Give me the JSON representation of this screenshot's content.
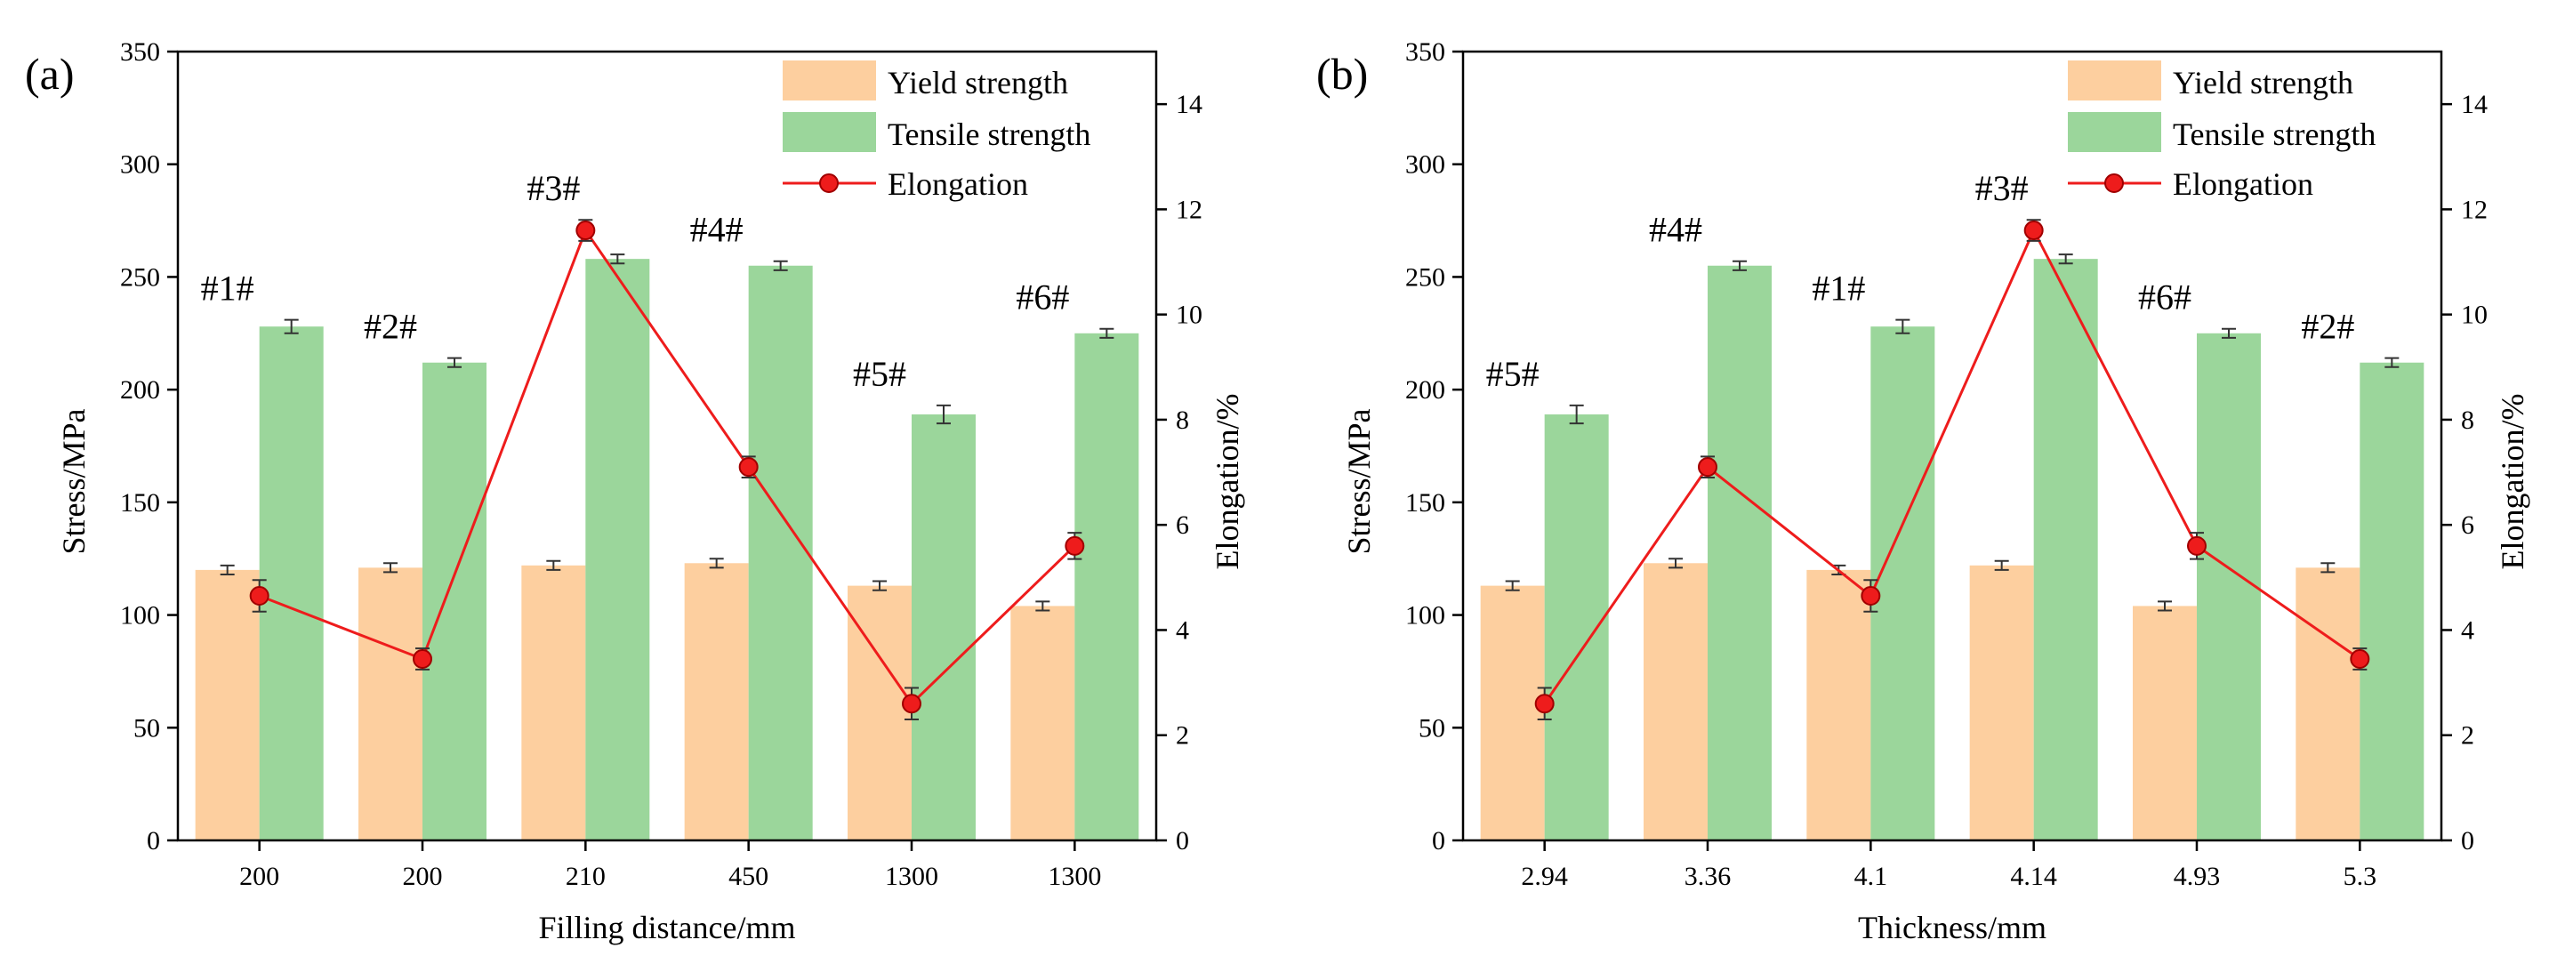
{
  "chart_data": [
    {
      "type": "bar",
      "panel": "(a)",
      "xlabel": "Filling distance/mm",
      "ylabel": "Stress/MPa",
      "y2label": "Elongation/%",
      "ylim": [
        0,
        350
      ],
      "y2lim": [
        0,
        15
      ],
      "yticks": [
        0,
        50,
        100,
        150,
        200,
        250,
        300,
        350
      ],
      "y2ticks": [
        0,
        2,
        4,
        6,
        8,
        10,
        12,
        14
      ],
      "categories": [
        "200",
        "200",
        "210",
        "450",
        "1300",
        "1300"
      ],
      "sample_labels": [
        "#1#",
        "#2#",
        "#3#",
        "#4#",
        "#5#",
        "#6#"
      ],
      "series": [
        {
          "name": "Yield strength",
          "kind": "bar",
          "color": "#fdcf9f",
          "values": [
            120,
            121,
            122,
            123,
            113,
            104
          ],
          "errors": [
            2,
            2,
            2,
            2,
            2,
            2
          ]
        },
        {
          "name": "Tensile strength",
          "kind": "bar",
          "color": "#9bd69b",
          "values": [
            228,
            212,
            258,
            255,
            189,
            225
          ],
          "errors": [
            3,
            2,
            2,
            2,
            4,
            2
          ]
        },
        {
          "name": "Elongation",
          "kind": "line",
          "axis": "y2",
          "color": "#ee1c1c",
          "values": [
            4.65,
            3.45,
            11.6,
            7.1,
            2.6,
            5.6
          ],
          "errors": [
            0.3,
            0.2,
            0.2,
            0.2,
            0.3,
            0.25
          ]
        }
      ],
      "legend_position": "top-right"
    },
    {
      "type": "bar",
      "panel": "(b)",
      "xlabel": "Thickness/mm",
      "ylabel": "Stress/MPa",
      "y2label": "Elongation/%",
      "ylim": [
        0,
        350
      ],
      "y2lim": [
        0,
        15
      ],
      "yticks": [
        0,
        50,
        100,
        150,
        200,
        250,
        300,
        350
      ],
      "y2ticks": [
        0,
        2,
        4,
        6,
        8,
        10,
        12,
        14
      ],
      "categories": [
        "2.94",
        "3.36",
        "4.1",
        "4.14",
        "4.93",
        "5.3"
      ],
      "sample_labels": [
        "#5#",
        "#4#",
        "#1#",
        "#3#",
        "#6#",
        "#2#"
      ],
      "series": [
        {
          "name": "Yield strength",
          "kind": "bar",
          "color": "#fdcf9f",
          "values": [
            113,
            123,
            120,
            122,
            104,
            121
          ],
          "errors": [
            2,
            2,
            2,
            2,
            2,
            2
          ]
        },
        {
          "name": "Tensile strength",
          "kind": "bar",
          "color": "#9bd69b",
          "values": [
            189,
            255,
            228,
            258,
            225,
            212
          ],
          "errors": [
            4,
            2,
            3,
            2,
            2,
            2
          ]
        },
        {
          "name": "Elongation",
          "kind": "line",
          "axis": "y2",
          "color": "#ee1c1c",
          "values": [
            2.6,
            7.1,
            4.65,
            11.6,
            5.6,
            3.45
          ],
          "errors": [
            0.3,
            0.2,
            0.3,
            0.2,
            0.25,
            0.2
          ]
        }
      ],
      "legend_position": "top-right"
    }
  ]
}
